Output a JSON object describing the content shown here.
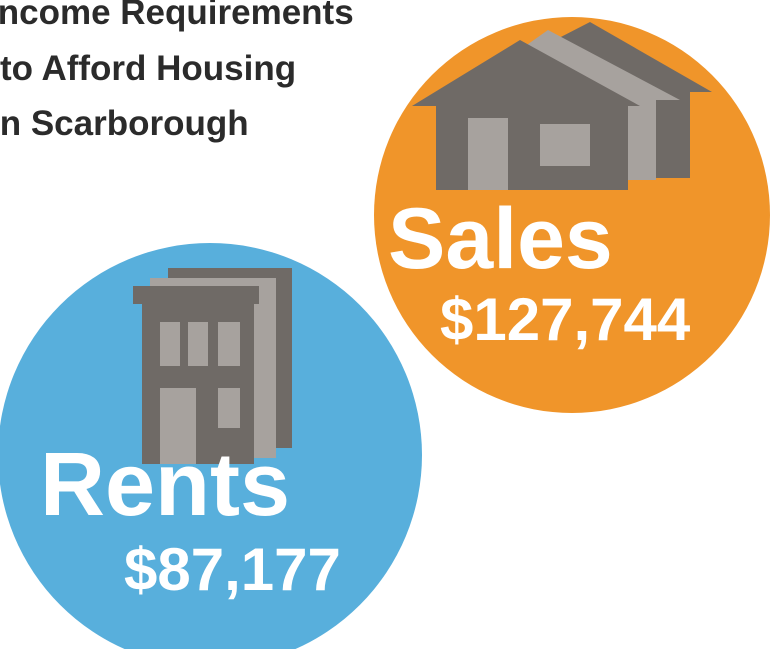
{
  "title": {
    "lines": [
      "Income Requirements",
      "to Afford Housing",
      "in Scarborough"
    ]
  },
  "sales": {
    "label": "Sales",
    "amount": "$127,744"
  },
  "rents": {
    "label": "Rents",
    "amount": "$87,177"
  }
}
